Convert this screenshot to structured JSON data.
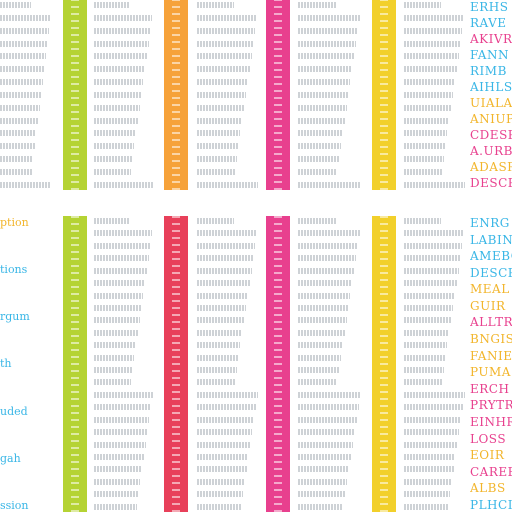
{
  "colors": {
    "lime": "#b5d334",
    "orange": "#f6a23a",
    "magenta": "#e8408e",
    "yellow": "#f2d02b",
    "red": "#e8405a",
    "gray_text": "#9aa0a6",
    "cyan": "#39b6e6",
    "pink": "#e8408e",
    "gold": "#f2b52b"
  },
  "icons": [
    "vertical-tab-strip"
  ],
  "top": {
    "strips": [
      {
        "id": "lime",
        "text": ""
      },
      {
        "id": "orange",
        "text": ""
      },
      {
        "id": "magenta",
        "text": ""
      },
      {
        "id": "yellow",
        "text": ""
      }
    ],
    "right_words": [
      {
        "text": "ERHS",
        "color": "cyan"
      },
      {
        "text": "RAVE",
        "color": "cyan"
      },
      {
        "text": "AKIVR",
        "color": "pink"
      },
      {
        "text": "FANN",
        "color": "cyan"
      },
      {
        "text": "RIMB",
        "color": "cyan"
      },
      {
        "text": "AIHLS",
        "color": "cyan"
      },
      {
        "text": "UIALA",
        "color": "gold"
      },
      {
        "text": "ANIUP",
        "color": "gold"
      },
      {
        "text": "CDESR",
        "color": "pink"
      },
      {
        "text": "A.URB",
        "color": "pink"
      },
      {
        "text": "ADASR",
        "color": "gold"
      },
      {
        "text": "DESCR",
        "color": "pink"
      }
    ]
  },
  "bottom": {
    "strips": [
      {
        "id": "lime",
        "text": ""
      },
      {
        "id": "red",
        "text": ""
      },
      {
        "id": "magenta",
        "text": ""
      },
      {
        "id": "yellow",
        "text": ""
      }
    ],
    "left_words": [
      {
        "text": "ption",
        "color": "gold"
      },
      {
        "text": "tions",
        "color": "cyan"
      },
      {
        "text": "rgum",
        "color": "cyan"
      },
      {
        "text": "th",
        "color": "cyan"
      },
      {
        "text": "uded",
        "color": "cyan"
      },
      {
        "text": "gah",
        "color": "cyan"
      },
      {
        "text": "ssion",
        "color": "cyan"
      }
    ],
    "right_words": [
      {
        "text": "ENRG",
        "color": "cyan"
      },
      {
        "text": "LABIN",
        "color": "cyan"
      },
      {
        "text": "AMEBC",
        "color": "cyan"
      },
      {
        "text": "DESCR",
        "color": "cyan"
      },
      {
        "text": "MEAL",
        "color": "gold"
      },
      {
        "text": "GUIR",
        "color": "gold"
      },
      {
        "text": "ALLTR",
        "color": "pink"
      },
      {
        "text": "BNGIS",
        "color": "gold"
      },
      {
        "text": "FANIE",
        "color": "gold"
      },
      {
        "text": "PUMA",
        "color": "gold"
      },
      {
        "text": "ERCH",
        "color": "pink"
      },
      {
        "text": "PRYTR",
        "color": "pink"
      },
      {
        "text": "EINHR",
        "color": "pink"
      },
      {
        "text": "LOSS",
        "color": "pink"
      },
      {
        "text": "EOIR",
        "color": "gold"
      },
      {
        "text": "CAREE",
        "color": "pink"
      },
      {
        "text": "ALBS",
        "color": "gold"
      },
      {
        "text": "PLHCI",
        "color": "cyan"
      }
    ]
  }
}
